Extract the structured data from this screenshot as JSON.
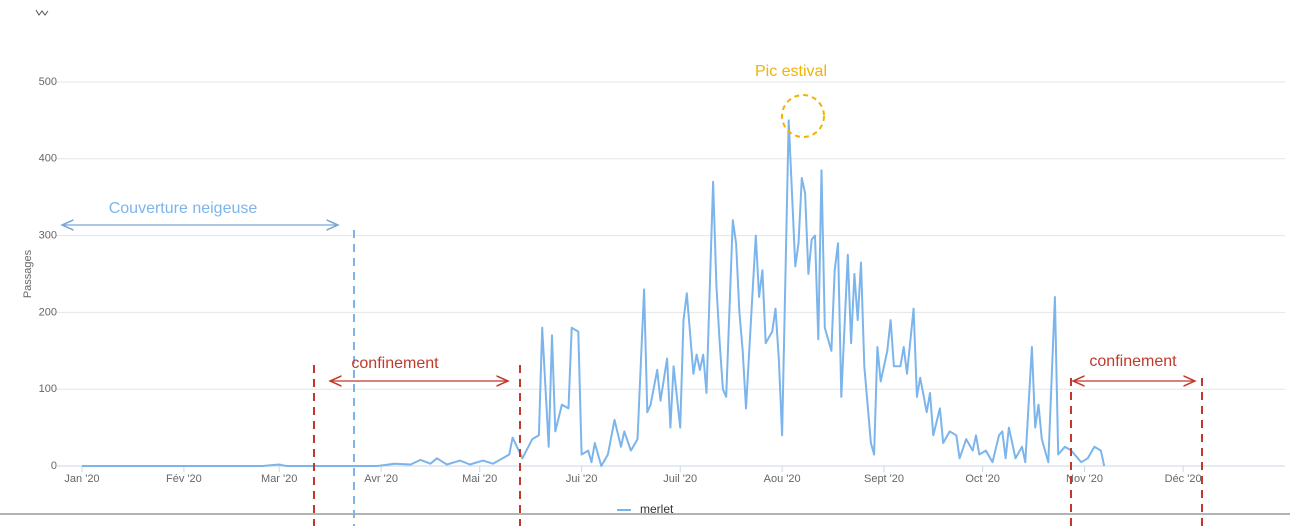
{
  "chart_data": {
    "type": "line",
    "y_label": "Passages",
    "annotations": {
      "snow": "Couverture neigeuse",
      "lockdown1": "confinement",
      "lockdown2": "confinement",
      "peak": "Pic estival"
    },
    "series": [
      {
        "name": "merlet",
        "color": "#7cb5ec",
        "x": [
          0,
          30,
          55,
          60,
          62,
          90,
          95,
          100,
          103,
          106,
          108,
          111,
          115,
          118,
          122,
          125,
          128,
          130,
          131,
          134,
          137,
          139,
          140,
          142,
          143,
          144,
          146,
          148,
          149,
          151,
          152,
          154,
          155,
          156,
          158,
          160,
          162,
          164,
          165,
          167,
          169,
          171,
          172,
          173,
          175,
          176,
          178,
          179,
          180,
          182,
          183,
          184,
          186,
          187,
          188,
          189,
          190,
          192,
          193,
          194,
          195,
          196,
          198,
          199,
          200,
          201,
          202,
          204,
          205,
          206,
          207,
          208,
          210,
          211,
          212,
          213,
          215,
          217,
          218,
          219,
          220,
          221,
          222,
          223,
          224,
          225,
          226,
          228,
          229,
          230,
          231,
          233,
          234,
          235,
          236,
          237,
          238,
          240,
          241,
          242,
          243,
          245,
          246,
          247,
          249,
          250,
          251,
          253,
          254,
          255,
          257,
          258,
          259,
          261,
          262,
          264,
          266,
          267,
          269,
          271,
          272,
          273,
          275,
          277,
          279,
          280,
          281,
          282,
          284,
          286,
          287,
          289,
          290,
          291,
          292,
          294,
          296,
          297,
          299,
          301,
          302,
          304,
          306,
          308,
          310,
          311
        ],
        "values": [
          0,
          0,
          0,
          2,
          0,
          0,
          3,
          2,
          8,
          3,
          10,
          2,
          7,
          2,
          7,
          3,
          10,
          15,
          37,
          10,
          35,
          40,
          180,
          25,
          170,
          45,
          80,
          75,
          180,
          175,
          15,
          20,
          5,
          30,
          0,
          15,
          60,
          25,
          45,
          20,
          35,
          230,
          70,
          80,
          125,
          85,
          140,
          50,
          130,
          50,
          190,
          225,
          120,
          145,
          125,
          145,
          95,
          370,
          235,
          160,
          100,
          90,
          320,
          290,
          200,
          150,
          75,
          225,
          300,
          220,
          255,
          160,
          175,
          205,
          140,
          40,
          450,
          260,
          290,
          375,
          355,
          250,
          295,
          300,
          165,
          385,
          180,
          150,
          255,
          290,
          90,
          275,
          160,
          250,
          190,
          265,
          130,
          30,
          15,
          155,
          110,
          150,
          190,
          130,
          130,
          155,
          120,
          205,
          90,
          115,
          70,
          95,
          40,
          75,
          30,
          45,
          40,
          10,
          35,
          20,
          40,
          15,
          20,
          5,
          40,
          45,
          10,
          50,
          10,
          25,
          5,
          155,
          50,
          80,
          35,
          5,
          220,
          15,
          25,
          20,
          15,
          5,
          10,
          25,
          20,
          0
        ]
      }
    ],
    "xlim": [
      0,
      366
    ],
    "xticks": [
      {
        "value": 0,
        "label": "Jan '20"
      },
      {
        "value": 31,
        "label": "Fév '20"
      },
      {
        "value": 60,
        "label": "Mar '20"
      },
      {
        "value": 91,
        "label": "Avr '20"
      },
      {
        "value": 121,
        "label": "Mai '20"
      },
      {
        "value": 152,
        "label": "Jui '20"
      },
      {
        "value": 182,
        "label": "Juil '20"
      },
      {
        "value": 213,
        "label": "Aou '20"
      },
      {
        "value": 244,
        "label": "Sept '20"
      },
      {
        "value": 274,
        "label": "Oct '20"
      },
      {
        "value": 305,
        "label": "Nov '20"
      },
      {
        "value": 335,
        "label": "Déc '20"
      }
    ],
    "ylim": [
      0,
      500
    ],
    "yticks": [
      0,
      100,
      200,
      300,
      400,
      500
    ],
    "grid": true
  }
}
